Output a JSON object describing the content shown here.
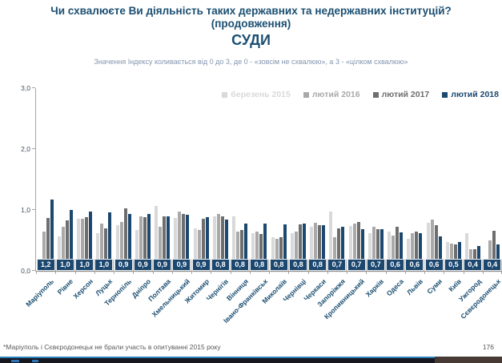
{
  "title": {
    "line1": "Чи схвалюєте Ви діяльність таких державних та недержавних інституцій?",
    "line2": "(продовження)",
    "line3": "СУДИ"
  },
  "subtitle": "Значення Індексу коливається від 0 до 3, де 0 - «зовсім не схвалюю», а 3 - «цілком схвалюю»",
  "colors": {
    "title": "#1B4F72",
    "subtitle": "#8496B0",
    "axis": "#A6A6A6",
    "value_label_bg": "#1C4870",
    "strip_dark": "#17171f",
    "strip_blue": "#2980B9",
    "strip_maroon": "#473a35"
  },
  "chart_data": {
    "type": "bar",
    "title": "СУДИ",
    "xlabel": "",
    "ylabel": "",
    "ylim": [
      0,
      3
    ],
    "yticks": [
      "0,0",
      "1,0",
      "2,0",
      "3,0"
    ],
    "grid": false,
    "legend_position": "top-right",
    "categories": [
      "Маріуполь",
      "Рівне",
      "Херсон",
      "Луцьк",
      "Тернопіль",
      "Дніпро",
      "Полтава",
      "Хмельницький",
      "Житомир",
      "Чернігів",
      "Вінниця",
      "Івано-Франківськ",
      "Миколаїв",
      "Чернівці",
      "Черкаси",
      "Запоріжжя",
      "Кропивницький",
      "Харків",
      "Одеса",
      "Львів",
      "Суми",
      "Київ",
      "Ужгород",
      "Сєвєродонецьк"
    ],
    "series": [
      {
        "name": "березень 2015",
        "color": "#D9D9D9",
        "values": [
          null,
          0.57,
          0.85,
          0.62,
          0.75,
          0.67,
          1.07,
          0.87,
          0.7,
          0.9,
          0.9,
          0.62,
          0.55,
          0.62,
          0.73,
          0.97,
          0.74,
          0.62,
          0.65,
          0.53,
          0.79,
          0.48,
          0.62,
          null
        ]
      },
      {
        "name": "лютий 2016",
        "color": "#A9A9A9",
        "values": [
          0.65,
          0.72,
          0.85,
          0.78,
          0.8,
          0.9,
          0.72,
          0.97,
          0.67,
          0.93,
          0.65,
          0.65,
          0.52,
          0.64,
          0.79,
          0.55,
          0.78,
          0.73,
          0.58,
          0.62,
          0.84,
          0.45,
          0.35,
          0.5
        ]
      },
      {
        "name": "лютий 2017",
        "color": "#6E6E6E",
        "values": [
          0.87,
          0.83,
          0.88,
          0.7,
          1.02,
          0.88,
          0.9,
          0.93,
          0.85,
          0.9,
          0.67,
          0.6,
          0.55,
          0.76,
          0.75,
          0.7,
          0.8,
          0.69,
          0.73,
          0.64,
          0.75,
          0.43,
          0.35,
          0.66
        ]
      },
      {
        "name": "лютий 2018",
        "color": "#1C4870",
        "values": [
          1.17,
          1.0,
          0.98,
          0.96,
          0.94,
          0.93,
          0.9,
          0.92,
          0.88,
          0.84,
          0.78,
          0.78,
          0.76,
          0.77,
          0.75,
          0.72,
          0.69,
          0.68,
          0.63,
          0.62,
          0.56,
          0.47,
          0.41,
          0.43
        ],
        "labels": [
          "1,2",
          "1,0",
          "1,0",
          "1,0",
          "0,9",
          "0,9",
          "0,9",
          "0,9",
          "0,9",
          "0,8",
          "0,8",
          "0,8",
          "0,8",
          "0,8",
          "0,8",
          "0,7",
          "0,7",
          "0,7",
          "0,6",
          "0,6",
          "0,6",
          "0,5",
          "0,4",
          "0,4"
        ]
      }
    ]
  },
  "footer": {
    "note": "*Маріуполь і Сєвєродонецьк не брали участь в опитуванні 2015 року",
    "page": "176"
  }
}
